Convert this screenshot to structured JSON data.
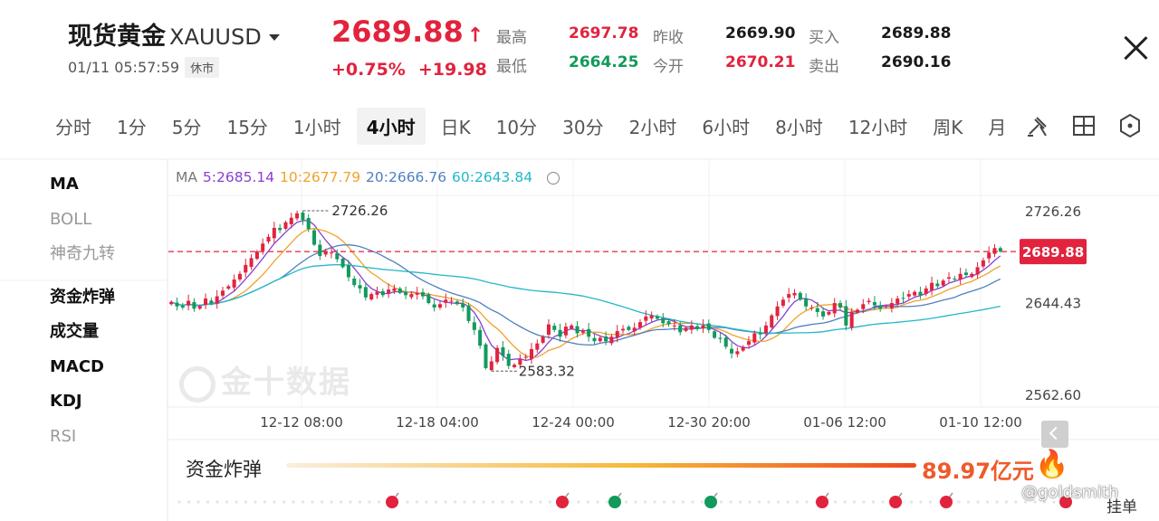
{
  "header": {
    "name": "现货黄金",
    "code": "XAUUSD",
    "datetime": "01/11 05:57:59",
    "status": "休市",
    "price": "2689.88",
    "change_pct": "+0.75%",
    "change_abs": "+19.98",
    "stats": [
      {
        "label": "最高",
        "value": "2697.78",
        "color": "#e2233e"
      },
      {
        "label": "最低",
        "value": "2664.25",
        "color": "#129a5c"
      },
      {
        "label": "昨收",
        "value": "2669.90",
        "color": "#1a1a1a"
      },
      {
        "label": "今开",
        "value": "2670.21",
        "color": "#e2233e"
      },
      {
        "label": "买入",
        "value": "2689.88",
        "color": "#1a1a1a"
      },
      {
        "label": "卖出",
        "value": "2690.16",
        "color": "#1a1a1a"
      }
    ]
  },
  "tabs": [
    "分时",
    "1分",
    "5分",
    "15分",
    "1小时",
    "4小时",
    "日K",
    "10分",
    "30分",
    "2小时",
    "6小时",
    "8小时",
    "12小时",
    "周K",
    "月"
  ],
  "active_tab": "4小时",
  "indicators": {
    "main": [
      {
        "label": "MA",
        "on": true
      },
      {
        "label": "BOLL",
        "on": false
      },
      {
        "label": "神奇九转",
        "on": false
      }
    ],
    "sub": [
      {
        "label": "资金炸弹",
        "on": true
      },
      {
        "label": "成交量",
        "on": true
      },
      {
        "label": "MACD",
        "on": true
      },
      {
        "label": "KDJ",
        "on": true
      },
      {
        "label": "RSI",
        "on": false
      }
    ]
  },
  "ma_legend": {
    "title": "MA",
    "items": [
      {
        "label": "5:2685.14",
        "color": "#8a3fd1"
      },
      {
        "label": "10:2677.79",
        "color": "#f0a22b"
      },
      {
        "label": "20:2666.76",
        "color": "#4f7fc0"
      },
      {
        "label": "60:2643.84",
        "color": "#22b8c8"
      }
    ]
  },
  "colors": {
    "up": "#e2233e",
    "down": "#129a5c",
    "accent": "#e2233e"
  },
  "watermark_logo": "金十数据",
  "chart_data": {
    "type": "candlestick",
    "y_axis_labels": [
      "2726.26",
      "2644.43",
      "2562.60"
    ],
    "yrange": [
      2562.6,
      2726.26
    ],
    "x_axis_labels": [
      "12-12 08:00",
      "12-18 04:00",
      "12-24 00:00",
      "12-30 20:00",
      "01-06 12:00",
      "01-10 12:00"
    ],
    "current_price_label": "2689.88",
    "annotations": {
      "high": "2726.26",
      "low": "2583.32"
    },
    "close_series": [
      2645,
      2641,
      2640,
      2646,
      2639,
      2641,
      2648,
      2644,
      2650,
      2655,
      2659,
      2665,
      2670,
      2678,
      2684,
      2690,
      2697,
      2703,
      2711,
      2709,
      2716,
      2720,
      2724,
      2718,
      2710,
      2696,
      2686,
      2690,
      2689,
      2683,
      2676,
      2667,
      2660,
      2657,
      2649,
      2652,
      2654,
      2651,
      2656,
      2657,
      2653,
      2651,
      2652,
      2653,
      2650,
      2644,
      2640,
      2643,
      2647,
      2646,
      2643,
      2640,
      2628,
      2620,
      2606,
      2586,
      2592,
      2604,
      2597,
      2588,
      2589,
      2594,
      2596,
      2603,
      2608,
      2614,
      2625,
      2620,
      2614,
      2623,
      2624,
      2617,
      2619,
      2614,
      2610,
      2613,
      2610,
      2614,
      2619,
      2621,
      2620,
      2622,
      2627,
      2632,
      2633,
      2630,
      2626,
      2625,
      2624,
      2618,
      2622,
      2624,
      2621,
      2624,
      2620,
      2613,
      2612,
      2605,
      2599,
      2601,
      2605,
      2610,
      2617,
      2616,
      2624,
      2633,
      2641,
      2647,
      2652,
      2653,
      2647,
      2641,
      2640,
      2636,
      2632,
      2636,
      2644,
      2640,
      2624,
      2636,
      2638,
      2643,
      2646,
      2642,
      2639,
      2641,
      2644,
      2648,
      2648,
      2652,
      2654,
      2651,
      2657,
      2662,
      2659,
      2664,
      2667,
      2665,
      2670,
      2669,
      2670,
      2676,
      2682,
      2689,
      2693,
      2690
    ],
    "ma": {
      "periods": [
        5,
        10,
        20,
        60
      ],
      "latest": [
        2685.14,
        2677.79,
        2666.76,
        2643.84
      ]
    },
    "bomb": {
      "label": "资金炸弹",
      "value": "89.97亿元",
      "bombs": [
        "up",
        "up",
        "down",
        "down",
        "up",
        "up",
        "up",
        "up"
      ]
    }
  },
  "ui": {
    "watermark": "@goldsmith",
    "pending_orders": "挂单"
  }
}
